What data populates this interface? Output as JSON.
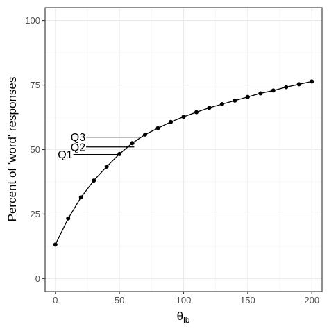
{
  "chart_data": {
    "type": "line",
    "xlabel": "θ",
    "xlabel_sub": "lb",
    "ylabel": "Percent of 'word' responses",
    "xlim": [
      -8,
      208
    ],
    "ylim": [
      -5,
      105
    ],
    "x_ticks": [
      0,
      50,
      100,
      150,
      200
    ],
    "y_ticks": [
      0,
      25,
      50,
      75,
      100
    ],
    "x_tick_labels": [
      "0",
      "50",
      "100",
      "150",
      "200"
    ],
    "y_tick_labels": [
      "0",
      "25",
      "50",
      "75",
      "100"
    ],
    "grid": true,
    "series": [
      {
        "x": [
          0,
          10,
          20,
          30,
          40,
          50,
          60,
          70,
          80,
          90,
          100,
          110,
          120,
          130,
          140,
          150,
          160,
          170,
          180,
          190,
          200
        ],
        "y": [
          13.2,
          23.3,
          31.5,
          38.0,
          43.4,
          48.3,
          52.5,
          55.8,
          58.3,
          60.7,
          62.7,
          64.5,
          66.2,
          67.6,
          69.0,
          70.4,
          71.8,
          72.9,
          74.2,
          75.3,
          76.4
        ]
      }
    ],
    "annotations": [
      {
        "text": "Q3",
        "y": 54.8,
        "x_from": 24,
        "x_to": 67.5
      },
      {
        "text": "Q2",
        "y": 51.0,
        "x_from": 24,
        "x_to": 61.5
      },
      {
        "text": "Q1",
        "y": 48.1,
        "x_from": 14,
        "x_to": 50
      }
    ]
  }
}
